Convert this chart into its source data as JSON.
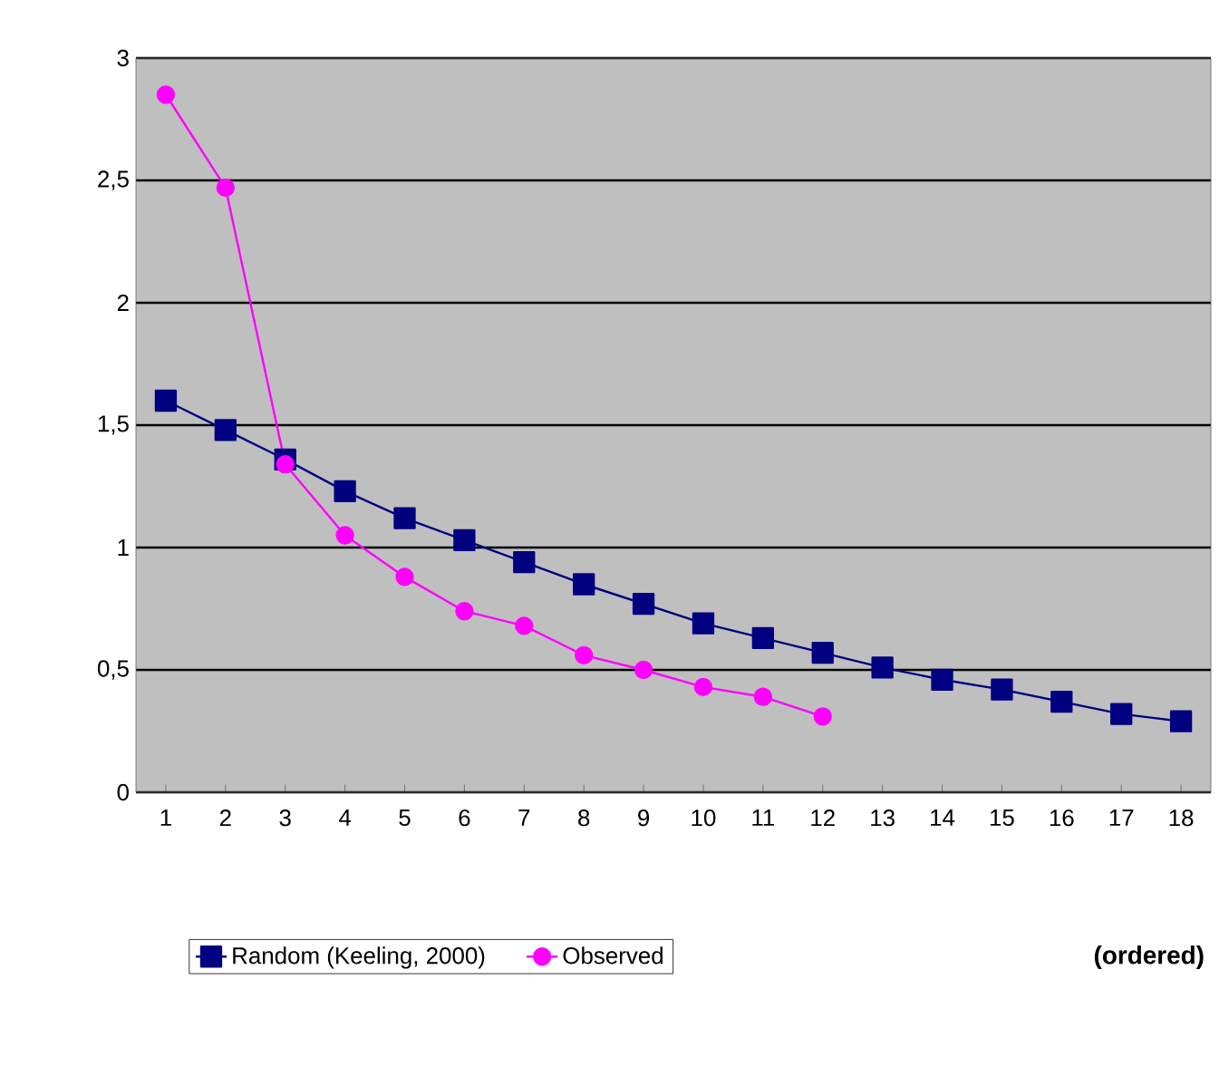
{
  "chart_data": {
    "type": "line",
    "xlabel": "(ordered)",
    "categories": [
      "1",
      "2",
      "3",
      "4",
      "5",
      "6",
      "7",
      "8",
      "9",
      "10",
      "11",
      "12",
      "13",
      "14",
      "15",
      "16",
      "17",
      "18"
    ],
    "series": [
      {
        "name": "Random (Keeling, 2000)",
        "color": "#000080",
        "marker": "square",
        "values": [
          1.6,
          1.48,
          1.36,
          1.23,
          1.12,
          1.03,
          0.94,
          0.85,
          0.77,
          0.69,
          0.63,
          0.57,
          0.51,
          0.46,
          0.42,
          0.37,
          0.32,
          0.29
        ]
      },
      {
        "name": "Observed",
        "color": "#ff00ff",
        "marker": "circle",
        "values": [
          2.85,
          2.47,
          1.34,
          1.05,
          0.88,
          0.74,
          0.68,
          0.56,
          0.5,
          0.43,
          0.39,
          0.31,
          null,
          null,
          null,
          null,
          null,
          null
        ]
      }
    ],
    "ylim": [
      0,
      3
    ],
    "yticks": [
      0,
      {
        "value": 0.5,
        "label": "0,5"
      },
      1,
      {
        "value": 1.5,
        "label": "1,5"
      },
      2,
      {
        "value": 2.5,
        "label": "2,5"
      },
      3
    ],
    "grid": "y",
    "legend": "bottom",
    "line_style": "solid"
  }
}
